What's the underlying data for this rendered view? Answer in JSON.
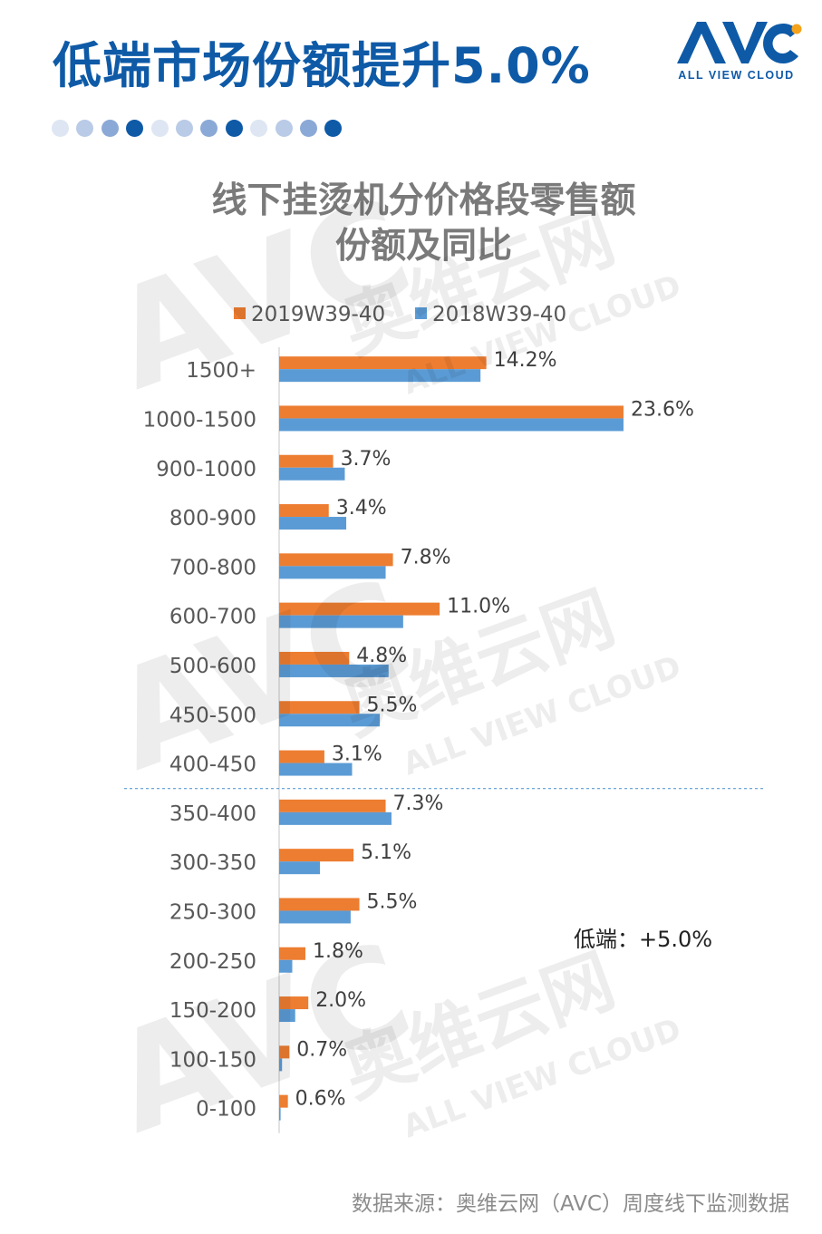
{
  "header": {
    "title": "低端市场份额提升5.0%",
    "logo_text": "AVC",
    "logo_subtext": "ALL VIEW CLOUD",
    "progress_dots": [
      "#dde6f2",
      "#b9cbe6",
      "#8ba9d6",
      "#0e5aa7",
      "#dde6f2",
      "#b9cbe6",
      "#8ba9d6",
      "#0e5aa7",
      "#dde6f2",
      "#b9cbe6",
      "#8ba9d6",
      "#0e5aa7"
    ]
  },
  "chart_data": {
    "type": "bar",
    "orientation": "horizontal",
    "title_line1": "线下挂烫机分价格段零售额",
    "title_line2": "份额及同比",
    "categories": [
      "1500+",
      "1000-1500",
      "900-1000",
      "800-900",
      "700-800",
      "600-700",
      "500-600",
      "450-500",
      "400-450",
      "350-400",
      "300-350",
      "250-300",
      "200-250",
      "150-200",
      "100-150",
      "0-100"
    ],
    "series": [
      {
        "name": "2019W39-40",
        "color": "#ed7d31",
        "values": [
          14.2,
          23.6,
          3.7,
          3.4,
          7.8,
          11.0,
          4.8,
          5.5,
          3.1,
          7.3,
          5.1,
          5.5,
          1.8,
          2.0,
          0.7,
          0.6
        ]
      },
      {
        "name": "2018W39-40",
        "color": "#5b9bd5",
        "values": [
          13.8,
          23.6,
          4.5,
          4.6,
          7.3,
          8.5,
          7.5,
          6.9,
          5.0,
          7.7,
          2.8,
          4.9,
          0.9,
          1.1,
          0.2,
          0.1
        ]
      }
    ],
    "data_labels": [
      "14.2%",
      "23.6%",
      "3.7%",
      "3.4%",
      "7.8%",
      "11.0%",
      "4.8%",
      "5.5%",
      "3.1%",
      "7.3%",
      "5.1%",
      "5.5%",
      "1.8%",
      "2.0%",
      "0.7%",
      "0.6%"
    ],
    "xlim": [
      0,
      33
    ],
    "divider_after_category": "400-450",
    "legend_position": "top",
    "annotation": "低端：+5.0%"
  },
  "footer": {
    "source": "数据来源：奥维云网（AVC）周度线下监测数据"
  },
  "watermark": {
    "main": "奥维云网",
    "sub": "ALL VIEW CLOUD",
    "logo": "AVC"
  }
}
